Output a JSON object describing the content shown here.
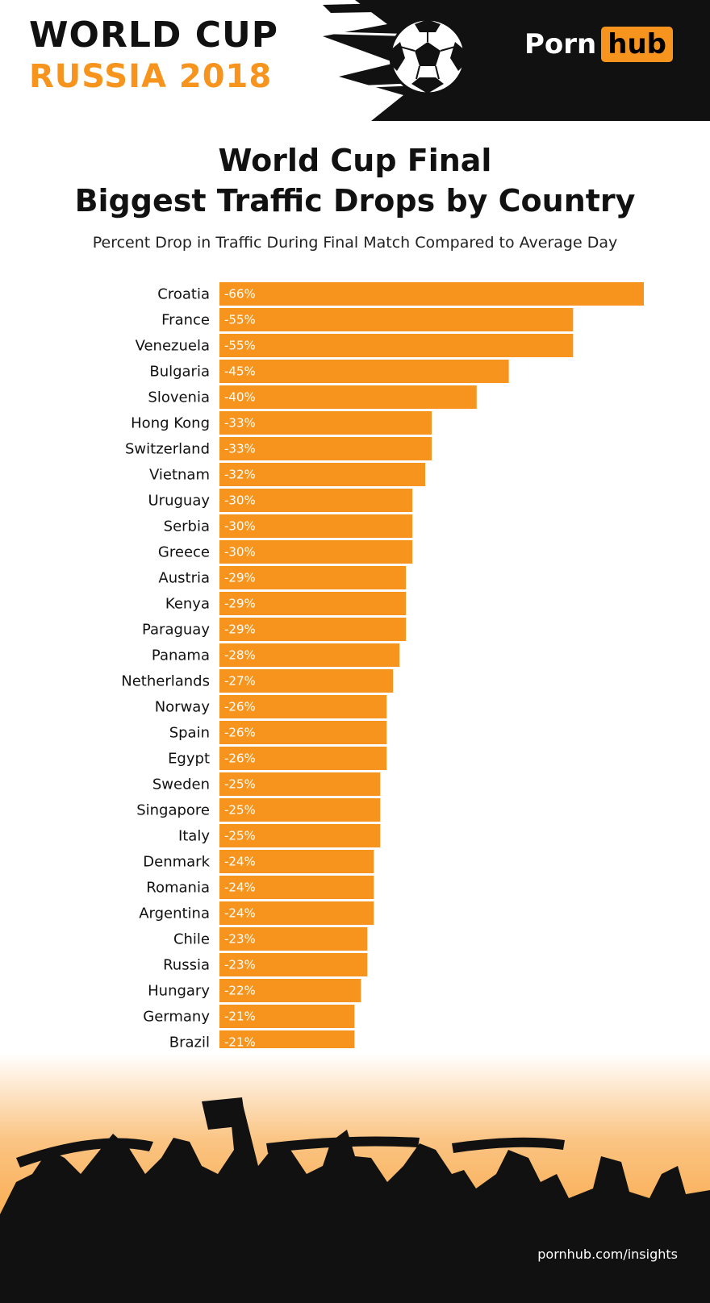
{
  "header": {
    "title_line1": "WORLD CUP",
    "title_line2": "RUSSIA 2018",
    "brand_part1": "Porn",
    "brand_part2": "hub"
  },
  "chart_data": {
    "type": "bar",
    "orientation": "horizontal",
    "title": "World Cup Final\nBiggest Traffic Drops by Country",
    "subtitle": "Percent Drop in Traffic During Final Match Compared to Average Day",
    "categories": [
      "Croatia",
      "France",
      "Venezuela",
      "Bulgaria",
      "Slovenia",
      "Hong Kong",
      "Switzerland",
      "Vietnam",
      "Uruguay",
      "Serbia",
      "Greece",
      "Austria",
      "Kenya",
      "Paraguay",
      "Panama",
      "Netherlands",
      "Norway",
      "Spain",
      "Egypt",
      "Sweden",
      "Singapore",
      "Italy",
      "Denmark",
      "Romania",
      "Argentina",
      "Chile",
      "Russia",
      "Hungary",
      "Germany",
      "Brazil"
    ],
    "values": [
      -66,
      -55,
      -55,
      -45,
      -40,
      -33,
      -33,
      -32,
      -30,
      -30,
      -30,
      -29,
      -29,
      -29,
      -28,
      -27,
      -26,
      -26,
      -26,
      -25,
      -25,
      -25,
      -24,
      -24,
      -24,
      -23,
      -23,
      -22,
      -21,
      -21
    ],
    "data_labels": [
      "-66%",
      "-55%",
      "-55%",
      "-45%",
      "-40%",
      "-33%",
      "-33%",
      "-32%",
      "-30%",
      "-30%",
      "-30%",
      "-29%",
      "-29%",
      "-29%",
      "-28%",
      "-27%",
      "-26%",
      "-26%",
      "-26%",
      "-25%",
      "-25%",
      "-25%",
      "-24%",
      "-24%",
      "-24%",
      "-23%",
      "-23%",
      "-22%",
      "-21%",
      "-21%"
    ],
    "bar_color": "#f7941d",
    "grid": false,
    "legend": "none"
  },
  "footer": {
    "link": "pornhub.com/insights"
  },
  "colors": {
    "accent": "#f7941d",
    "dark": "#111111"
  }
}
